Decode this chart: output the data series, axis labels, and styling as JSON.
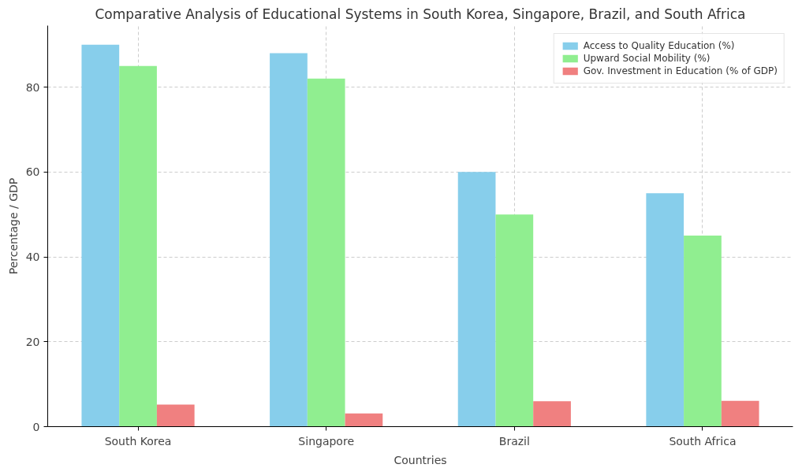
{
  "chart_data": {
    "type": "bar",
    "title": "Comparative Analysis of Educational Systems in South Korea, Singapore, Brazil, and South Africa",
    "xlabel": "Countries",
    "ylabel": "Percentage / GDP",
    "categories": [
      "South Korea",
      "Singapore",
      "Brazil",
      "South Africa"
    ],
    "series": [
      {
        "name": "Access to Quality Education (%)",
        "color": "#87ceeb",
        "values": [
          90,
          88,
          60,
          55
        ]
      },
      {
        "name": "Upward Social Mobility (%)",
        "color": "#90ee90",
        "values": [
          85,
          82,
          50,
          45
        ]
      },
      {
        "name": "Gov. Investment in Education (% of GDP)",
        "color": "#f08080",
        "values": [
          5.2,
          3.1,
          6.0,
          6.1
        ]
      }
    ],
    "ylim": [
      0,
      94.5
    ],
    "yticks": [
      0,
      20,
      40,
      60,
      80
    ],
    "grid": true,
    "legend": "top right"
  }
}
